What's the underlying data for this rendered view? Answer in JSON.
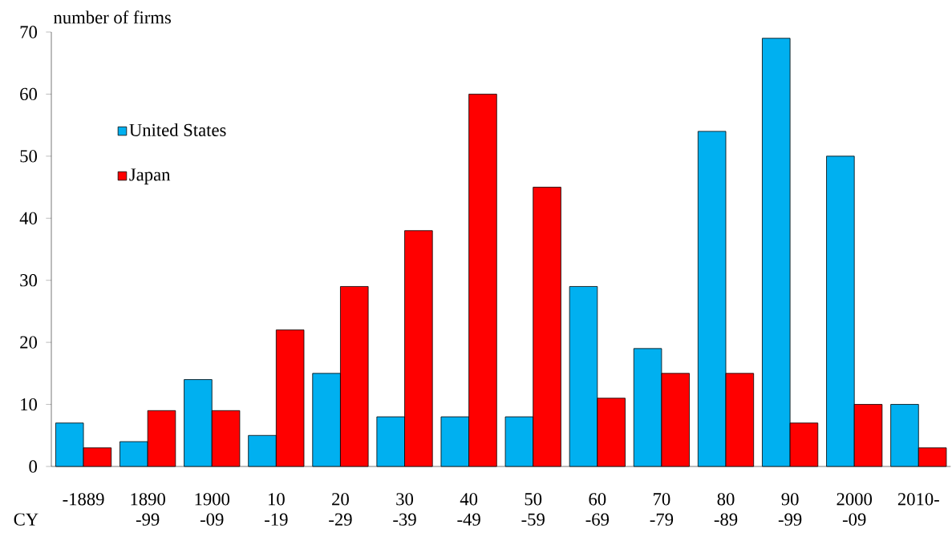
{
  "chart_data": {
    "type": "bar",
    "xlabel": "CY",
    "ylabel": "number of firms",
    "categories": [
      "-1889",
      "1890 -99",
      "1900 -09",
      "10 -19",
      "20 -29",
      "30 -39",
      "40 -49",
      "50 -59",
      "60 -69",
      "70 -79",
      "80 -89",
      "90 -99",
      "2000 -09",
      "2010-"
    ],
    "series": [
      {
        "name": "United States",
        "color": "#00b0f0",
        "values": [
          7,
          4,
          14,
          5,
          15,
          8,
          8,
          8,
          29,
          19,
          54,
          69,
          50,
          10
        ]
      },
      {
        "name": "Japan",
        "color": "#ff0000",
        "values": [
          3,
          9,
          9,
          22,
          29,
          38,
          60,
          45,
          11,
          15,
          15,
          7,
          10,
          3
        ]
      }
    ],
    "ylim": [
      0,
      70
    ],
    "yticks": [
      0,
      10,
      20,
      30,
      40,
      50,
      60,
      70
    ],
    "legend": "top left",
    "grid": false
  }
}
